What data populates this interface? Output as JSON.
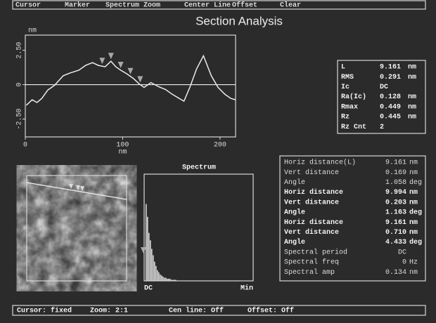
{
  "menu": [
    "Cursor",
    "Marker",
    "Spectrum Zoom",
    "Center Line",
    "Offset",
    "Clear"
  ],
  "title": "Section Analysis",
  "chart_data": [
    {
      "type": "line",
      "y_label": "nm",
      "x_label": "nm",
      "x": [
        1,
        7,
        12,
        17,
        23,
        30,
        39,
        46,
        55,
        62,
        69,
        75,
        82,
        88,
        93,
        98,
        104,
        111,
        117,
        122,
        129,
        137,
        144,
        151,
        158,
        163,
        169,
        176,
        183,
        191,
        198,
        205,
        211,
        216
      ],
      "series": [
        {
          "color": "#ececec",
          "values": [
            -1.5,
            -1.1,
            -1.3,
            -1.0,
            -0.4,
            -0.05,
            0.65,
            0.85,
            1.05,
            1.4,
            1.6,
            1.4,
            1.3,
            1.7,
            1.3,
            1.05,
            0.8,
            0.45,
            0.05,
            -0.2,
            0.15,
            -0.15,
            -0.35,
            -0.7,
            -1.0,
            -1.2,
            -0.2,
            1.15,
            2.1,
            0.65,
            -0.2,
            -0.7,
            -1.0,
            -1.1
          ]
        }
      ],
      "xlim": [
        0,
        216
      ],
      "ylim": [
        -3.8,
        3.6
      ],
      "xticks": [
        0,
        100,
        200
      ],
      "yticks": [
        {
          "value": -2.5,
          "label": "-2.50"
        },
        0,
        {
          "value": 2.5,
          "label": "2.50"
        }
      ],
      "zero_line": true,
      "markers_x": [
        79,
        88,
        98,
        108,
        118
      ],
      "marker_color": "#a8a8a8"
    },
    {
      "type": "bar",
      "title": "Spectrum",
      "x_start_label": "DC",
      "x_end_label": "Min",
      "values": [
        72,
        60,
        45,
        38,
        30,
        24,
        18,
        14,
        10,
        8,
        6,
        5,
        4,
        3,
        3,
        2,
        2,
        2,
        1,
        1,
        1,
        1
      ],
      "ylim": [
        0,
        100
      ],
      "color": "#d8d8d8"
    }
  ],
  "stats": {
    "rows": [
      [
        "L",
        "9.161",
        "nm"
      ],
      [
        "RMS",
        "0.291",
        "nm"
      ],
      [
        "Ic",
        "DC"
      ],
      [
        "Ra(Ic)",
        "0.128",
        "nm"
      ],
      [
        "Rmax",
        "0.449",
        "nm"
      ],
      [
        "Rz",
        "0.445",
        "nm"
      ],
      [
        "Rz Cnt",
        "2"
      ]
    ]
  },
  "measurements": {
    "rows": [
      [
        "Horiz distance(L)",
        "9.161",
        "nm"
      ],
      [
        "Vert distance",
        "0.169",
        "nm"
      ],
      [
        "Angle",
        "1.058",
        "deg"
      ],
      [
        "Horiz distance",
        "9.994",
        "nm"
      ],
      [
        "Vert distance",
        "0.203",
        "nm"
      ],
      [
        "Angle",
        "1.163",
        "deg"
      ],
      [
        "Horiz distance",
        "9.161",
        "nm"
      ],
      [
        "Vert distance",
        "0.710",
        "nm"
      ],
      [
        "Angle",
        "4.433",
        "deg"
      ],
      [
        "Spectral period",
        "DC"
      ],
      [
        "Spectral freq",
        "0",
        "Hz"
      ],
      [
        "Spectral amp",
        "0.134",
        "nm"
      ]
    ]
  },
  "status": [
    "Cursor: fixed",
    "Zoom: 2:1",
    "Cen line: Off",
    "Offset: Off"
  ]
}
